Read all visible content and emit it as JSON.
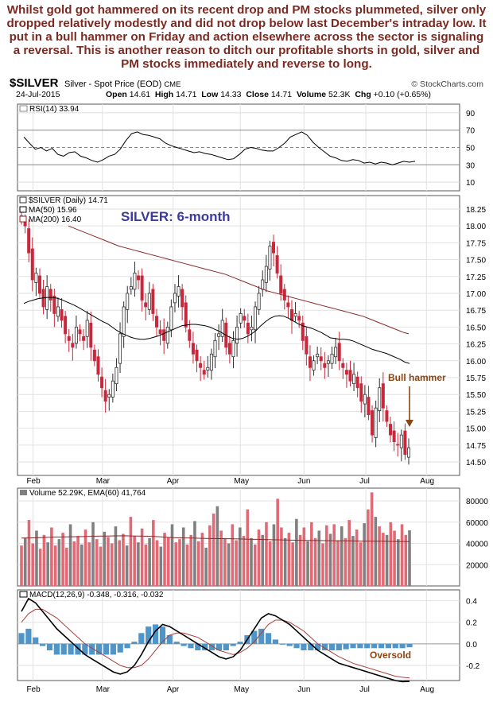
{
  "headline": "Whilst gold got hammered on its recent drop and PM stocks plummeted, silver only dropped relatively modestly and did not drop below last December's intraday low. It put in a bull hammer on Friday and action elsewhere across the sector is signaling a reversal. This is another reason to ditch our profitable shorts in gold, silver and PM stocks immediately and reverse to long.",
  "header": {
    "ticker": "$SILVER",
    "description": "Silver - Spot Price (EOD)",
    "exchange": "CME",
    "source": "© StockCharts.com",
    "date": "24-Jul-2015",
    "open_label": "Open",
    "open": "14.61",
    "high_label": "High",
    "high": "14.71",
    "low_label": "Low",
    "low": "14.33",
    "close_label": "Close",
    "close": "14.71",
    "volume_label": "Volume",
    "volume": "52.3K",
    "chg_label": "Chg",
    "chg": "+0.10 (+0.65%)"
  },
  "colors": {
    "up": "#2f2f2f",
    "down": "#c8283c",
    "ma50": "#000000",
    "ma200": "#8b2a2a",
    "annotation": "#8b4513",
    "title": "#3b3b9f",
    "hist": "#4f95c8",
    "signal": "#a8413e"
  },
  "chart_data": [
    {
      "type": "line",
      "name": "rsi-panel",
      "legend": "RSI(14) 33.94",
      "yticks": [
        10,
        30,
        50,
        70,
        90
      ],
      "ylim": [
        0,
        100
      ],
      "y": [
        62,
        55,
        48,
        50,
        46,
        49,
        42,
        40,
        44,
        45,
        40,
        38,
        35,
        33,
        36,
        40,
        42,
        48,
        58,
        66,
        68,
        65,
        64,
        62,
        60,
        55,
        52,
        50,
        48,
        46,
        44,
        45,
        43,
        42,
        40,
        38,
        36,
        37,
        42,
        48,
        50,
        49,
        47,
        46,
        46,
        50,
        55,
        62,
        65,
        68,
        64,
        56,
        50,
        45,
        40,
        38,
        35,
        34,
        36,
        35,
        32,
        33,
        31,
        33,
        32,
        30,
        32,
        34,
        33,
        34
      ]
    },
    {
      "type": "candlestick",
      "name": "price-panel",
      "title_label": "SILVER: 6-month",
      "legend": [
        "$SILVER (Daily) 14.71",
        "MA(50) 15.96",
        "MA(200) 16.40"
      ],
      "x_labels": [
        "Feb",
        "Mar",
        "Apr",
        "May",
        "Jun",
        "Jul",
        "Aug"
      ],
      "yticks": [
        14.5,
        14.75,
        15.0,
        15.25,
        15.5,
        15.75,
        16.0,
        16.25,
        16.5,
        16.75,
        17.0,
        17.25,
        17.5,
        17.75,
        18.0,
        18.25
      ],
      "ylim": [
        14.3,
        18.45
      ],
      "annotation": "Bull hammer",
      "close": [
        18.1,
        18.0,
        17.6,
        17.2,
        17.3,
        17.0,
        16.8,
        17.1,
        16.9,
        16.7,
        16.8,
        16.6,
        16.4,
        16.3,
        16.2,
        16.5,
        16.4,
        16.3,
        16.6,
        16.2,
        16.0,
        15.8,
        15.6,
        15.4,
        15.5,
        15.7,
        15.9,
        16.4,
        16.8,
        17.0,
        17.1,
        17.3,
        17.2,
        16.9,
        16.8,
        17.0,
        16.7,
        16.5,
        16.4,
        16.3,
        16.5,
        16.8,
        17.0,
        17.1,
        16.8,
        16.5,
        16.3,
        16.1,
        16.0,
        15.9,
        15.8,
        15.9,
        16.1,
        16.3,
        16.4,
        16.6,
        16.2,
        16.1,
        16.3,
        16.5,
        16.7,
        16.6,
        16.4,
        16.5,
        16.8,
        17.0,
        17.2,
        17.4,
        17.7,
        17.6,
        17.3,
        17.0,
        16.9,
        16.8,
        16.6,
        16.7,
        16.6,
        16.3,
        16.1,
        15.9,
        16.0,
        16.1,
        16.0,
        15.9,
        16.0,
        16.1,
        16.2,
        16.0,
        15.9,
        15.8,
        15.7,
        15.8,
        15.6,
        15.4,
        15.5,
        15.2,
        14.9,
        15.3,
        15.6,
        15.3,
        15.1,
        14.9,
        14.8,
        14.75,
        14.9,
        14.61,
        14.71
      ],
      "ma50": [
        16.85,
        16.88,
        16.9,
        16.92,
        16.93,
        16.94,
        16.94,
        16.93,
        16.91,
        16.88,
        16.85,
        16.82,
        16.78,
        16.74,
        16.7,
        16.66,
        16.62,
        16.58,
        16.55,
        16.5,
        16.45,
        16.41,
        16.38,
        16.35,
        16.33,
        16.32,
        16.32,
        16.33,
        16.35,
        16.37,
        16.4,
        16.43,
        16.46,
        16.49,
        16.52,
        16.53,
        16.54,
        16.54,
        16.53,
        16.52,
        16.5,
        16.47,
        16.44,
        16.4,
        16.36,
        16.33,
        16.32,
        16.33,
        16.36,
        16.4,
        16.45,
        16.52,
        16.58,
        16.63,
        16.66,
        16.67,
        16.66,
        16.63,
        16.59,
        16.55,
        16.52,
        16.5,
        16.48,
        16.45,
        16.42,
        16.38,
        16.34,
        16.33,
        16.32,
        16.32,
        16.31,
        16.29,
        16.26,
        16.23,
        16.2,
        16.17,
        16.15,
        16.13,
        16.11,
        16.08,
        16.05,
        16.02,
        15.98,
        15.96
      ],
      "ma200": [
        18.0,
        17.97,
        17.94,
        17.91,
        17.88,
        17.85,
        17.82,
        17.79,
        17.76,
        17.73,
        17.7,
        17.68,
        17.66,
        17.64,
        17.62,
        17.6,
        17.58,
        17.56,
        17.54,
        17.52,
        17.5,
        17.48,
        17.46,
        17.44,
        17.42,
        17.4,
        17.38,
        17.36,
        17.34,
        17.32,
        17.3,
        17.28,
        17.25,
        17.22,
        17.19,
        17.16,
        17.13,
        17.1,
        17.07,
        17.04,
        17.02,
        17.0,
        16.98,
        16.96,
        16.94,
        16.92,
        16.9,
        16.88,
        16.86,
        16.84,
        16.82,
        16.8,
        16.78,
        16.76,
        16.74,
        16.72,
        16.7,
        16.68,
        16.66,
        16.63,
        16.6,
        16.57,
        16.54,
        16.51,
        16.48,
        16.45,
        16.42,
        16.4
      ]
    },
    {
      "type": "bar",
      "name": "volume-panel",
      "legend": "Volume 52.29K, EMA(60) 41,764",
      "yticks": [
        20000,
        40000,
        60000,
        80000
      ],
      "ylim": [
        0,
        92000
      ],
      "values": [
        38000,
        45000,
        62000,
        40000,
        52000,
        35000,
        48000,
        41000,
        55000,
        38000,
        44000,
        50000,
        36000,
        58000,
        42000,
        47000,
        39000,
        53000,
        41000,
        60000,
        44000,
        37000,
        51000,
        46000,
        40000,
        56000,
        43000,
        49000,
        38000,
        65000,
        47000,
        41000,
        54000,
        39000,
        45000,
        62000,
        43000,
        37000,
        50000,
        46000,
        58000,
        41000,
        44000,
        55000,
        39000,
        48000,
        61000,
        42000,
        50000,
        36000,
        57000,
        68000,
        75000,
        52000,
        45000,
        40000,
        58000,
        43000,
        55000,
        47000,
        72000,
        45000,
        39000,
        53000,
        48000,
        60000,
        42000,
        58000,
        82000,
        55000,
        45000,
        50000,
        41000,
        63000,
        48000,
        55000,
        42000,
        60000,
        45000,
        52000,
        40000,
        57000,
        49000,
        58000,
        43000,
        56000,
        45000,
        62000,
        47000,
        53000,
        41000,
        59000,
        72000,
        88000,
        65000,
        56000,
        50000,
        48000,
        60000,
        52000,
        44000,
        58000,
        48000,
        52290
      ],
      "ema": [
        45000,
        45200,
        45500,
        45800,
        46000,
        46200,
        46400,
        46600,
        46800,
        47000,
        47100,
        47200,
        47000,
        46800,
        46500,
        46000,
        45500,
        45200,
        45000,
        44800,
        44600,
        44500,
        44400,
        44200,
        44000,
        43800,
        43600,
        43400,
        43200,
        43000,
        42800,
        42700,
        42600,
        42500,
        42400,
        42300,
        42200,
        42100,
        42000,
        41900,
        41800,
        41764
      ]
    },
    {
      "type": "line",
      "name": "macd-panel",
      "legend": "MACD(12,26,9) -0.348, -0.316, -0.032",
      "annotation": "Oversold",
      "yticks": [
        -0.2,
        0.0,
        0.2,
        0.4
      ],
      "ylim": [
        -0.34,
        0.5
      ],
      "macd": [
        0.3,
        0.42,
        0.38,
        0.3,
        0.22,
        0.14,
        0.08,
        0.02,
        -0.04,
        -0.1,
        -0.14,
        -0.18,
        -0.22,
        -0.26,
        -0.28,
        -0.26,
        -0.2,
        -0.1,
        0.02,
        0.12,
        0.18,
        0.16,
        0.12,
        0.08,
        0.04,
        0.0,
        -0.04,
        -0.08,
        -0.12,
        -0.14,
        -0.12,
        -0.06,
        0.04,
        0.14,
        0.24,
        0.28,
        0.26,
        0.22,
        0.18,
        0.12,
        0.06,
        0.0,
        -0.06,
        -0.1,
        -0.14,
        -0.18,
        -0.2,
        -0.22,
        -0.24,
        -0.26,
        -0.28,
        -0.3,
        -0.32,
        -0.34,
        -0.35,
        -0.348
      ],
      "signal": [
        0.2,
        0.28,
        0.32,
        0.32,
        0.28,
        0.24,
        0.18,
        0.12,
        0.06,
        0.0,
        -0.04,
        -0.08,
        -0.12,
        -0.16,
        -0.2,
        -0.22,
        -0.22,
        -0.2,
        -0.14,
        -0.06,
        0.02,
        0.08,
        0.1,
        0.1,
        0.08,
        0.06,
        0.02,
        -0.02,
        -0.06,
        -0.08,
        -0.1,
        -0.08,
        -0.04,
        0.02,
        0.1,
        0.18,
        0.22,
        0.22,
        0.2,
        0.16,
        0.12,
        0.06,
        0.0,
        -0.04,
        -0.08,
        -0.12,
        -0.15,
        -0.18,
        -0.2,
        -0.22,
        -0.24,
        -0.26,
        -0.28,
        -0.3,
        -0.31,
        -0.316
      ],
      "histogram": [
        0.1,
        0.14,
        0.06,
        -0.02,
        -0.06,
        -0.1,
        -0.1,
        -0.1,
        -0.1,
        -0.1,
        -0.1,
        -0.1,
        -0.1,
        -0.1,
        -0.08,
        -0.04,
        0.02,
        0.1,
        0.16,
        0.18,
        0.16,
        0.08,
        0.02,
        -0.02,
        -0.04,
        -0.06,
        -0.06,
        -0.06,
        -0.06,
        -0.06,
        -0.02,
        0.02,
        0.08,
        0.12,
        0.14,
        0.1,
        0.04,
        0.0,
        -0.02,
        -0.04,
        -0.06,
        -0.06,
        -0.06,
        -0.06,
        -0.06,
        -0.06,
        -0.05,
        -0.04,
        -0.04,
        -0.04,
        -0.04,
        -0.04,
        -0.04,
        -0.04,
        -0.04,
        -0.032
      ]
    }
  ]
}
